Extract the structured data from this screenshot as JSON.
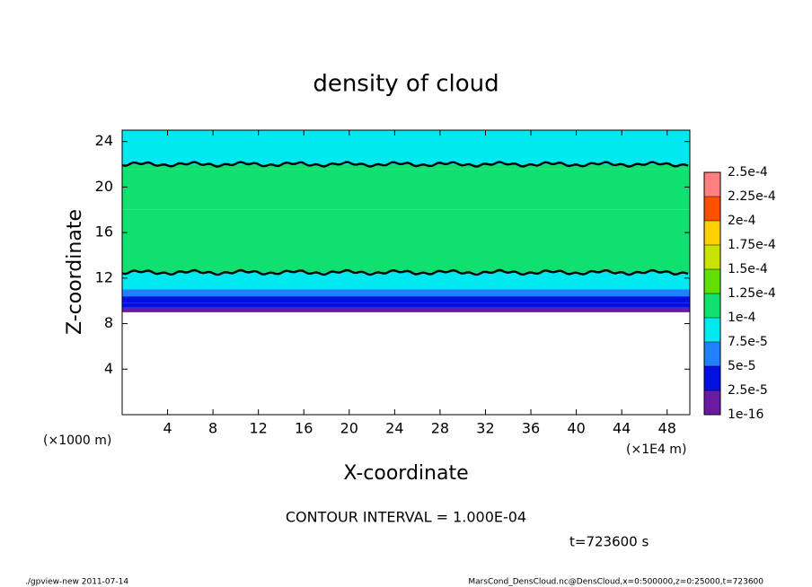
{
  "chart_data": {
    "type": "contour",
    "title": "density of cloud",
    "xlabel": "X-coordinate",
    "ylabel": "Z-coordinate",
    "x_unit": "(×1E4 m)",
    "y_unit": "(×1000 m)",
    "xlim": [
      0,
      50
    ],
    "xticks": [
      4,
      8,
      12,
      16,
      20,
      24,
      28,
      32,
      36,
      40,
      44,
      48
    ],
    "ylim": [
      0,
      25
    ],
    "yticks": [
      4,
      8,
      12,
      16,
      20,
      24
    ],
    "profile_z": [
      9,
      9.4,
      9.8,
      10.4,
      11,
      12.5,
      14,
      18,
      21.6,
      22
    ],
    "profile_values": [
      1e-05,
      3e-05,
      4e-05,
      6e-05,
      8e-05,
      0.000105,
      0.00011,
      0.00011,
      0.000105,
      8e-05
    ],
    "contour_level": 0.0001,
    "levels": [
      {
        "value": 1e-16,
        "label": "1e-16"
      },
      {
        "value": 2.5e-05,
        "label": "2.5e-5"
      },
      {
        "value": 5e-05,
        "label": "5e-5"
      },
      {
        "value": 7.5e-05,
        "label": "7.5e-5"
      },
      {
        "value": 0.0001,
        "label": "1e-4"
      },
      {
        "value": 0.000125,
        "label": "1.25e-4"
      },
      {
        "value": 0.00015,
        "label": "1.5e-4"
      },
      {
        "value": 0.000175,
        "label": "1.75e-4"
      },
      {
        "value": 0.0002,
        "label": "2e-4"
      },
      {
        "value": 0.000225,
        "label": "2.25e-4"
      },
      {
        "value": 0.00025,
        "label": "2.5e-4"
      }
    ],
    "colors": [
      "#6a1aa0",
      "#0010e0",
      "#2080ff",
      "#00e8f0",
      "#10e070",
      "#60e000",
      "#c8e400",
      "#ffd000",
      "#ff5000",
      "#ff8080"
    ],
    "annotation": "CONTOUR INTERVAL = 1.000E-04",
    "time_label": "t=723600 s",
    "footer_left": "./gpview-new  2011-07-14",
    "footer_right": "MarsCond_DensCloud.nc@DensCloud,x=0:500000,z=0:25000,t=723600"
  }
}
